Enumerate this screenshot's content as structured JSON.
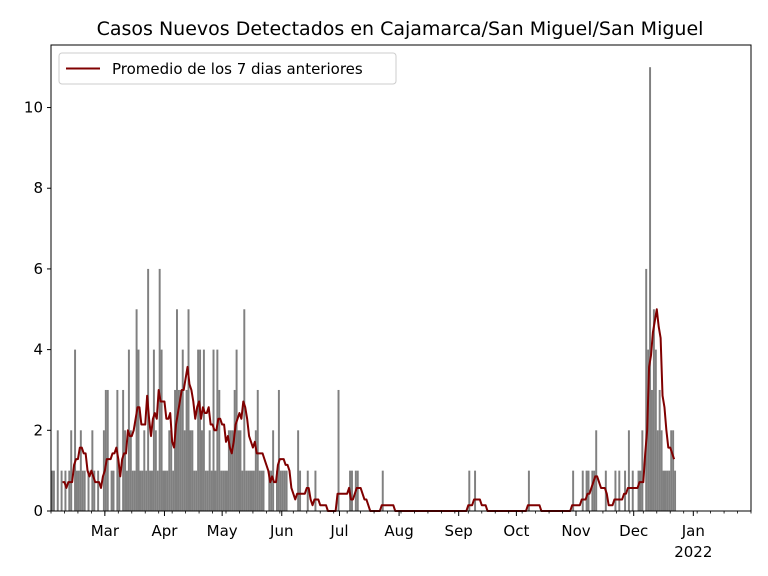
{
  "chart_data": {
    "type": "bar",
    "title": "Casos Nuevos Detectados en Cajamarca/San Miguel/San Miguel",
    "xlabel": "",
    "ylabel": "",
    "x_range": [
      "2021-02-01",
      "2022-01-31"
    ],
    "ylim": [
      0,
      11.55
    ],
    "yticks": [
      0,
      2,
      4,
      6,
      8,
      10
    ],
    "x_tick_labels": [
      {
        "date": "2021-03-01",
        "label": "Mar"
      },
      {
        "date": "2021-04-01",
        "label": "Apr"
      },
      {
        "date": "2021-05-01",
        "label": "May"
      },
      {
        "date": "2021-06-01",
        "label": "Jun"
      },
      {
        "date": "2021-07-01",
        "label": "Jul"
      },
      {
        "date": "2021-08-01",
        "label": "Aug"
      },
      {
        "date": "2021-09-01",
        "label": "Sep"
      },
      {
        "date": "2021-10-01",
        "label": "Oct"
      },
      {
        "date": "2021-11-01",
        "label": "Nov"
      },
      {
        "date": "2021-12-01",
        "label": "Dec"
      },
      {
        "date": "2022-01-01",
        "label": "Jan",
        "sublabel": "2022"
      }
    ],
    "grid": false,
    "legend": {
      "placement": "top-left",
      "entries": [
        "Promedio de los 7 dias anteriores"
      ]
    },
    "colors": {
      "bars": "#808080",
      "line": "#800000"
    },
    "start_date": "2021-02-01",
    "daily_cases": [
      1,
      1,
      0,
      2,
      0,
      1,
      0,
      1,
      0,
      1,
      2,
      0,
      4,
      1,
      1,
      2,
      1,
      1,
      0,
      1,
      0,
      2,
      1,
      0,
      1,
      0,
      0,
      2,
      3,
      3,
      0,
      1,
      1,
      0,
      3,
      1,
      0,
      3,
      2,
      1,
      4,
      2,
      1,
      1,
      5,
      4,
      1,
      1,
      2,
      1,
      6,
      1,
      1,
      4,
      2,
      1,
      6,
      4,
      1,
      1,
      1,
      2,
      2,
      1,
      3,
      5,
      3,
      3,
      4,
      2,
      3,
      5,
      2,
      2,
      1,
      1,
      4,
      4,
      2,
      4,
      1,
      1,
      2,
      1,
      4,
      1,
      4,
      3,
      1,
      1,
      1,
      1,
      2,
      2,
      2,
      3,
      4,
      2,
      2,
      1,
      5,
      1,
      1,
      1,
      1,
      1,
      2,
      3,
      1,
      1,
      1,
      0,
      0,
      1,
      1,
      2,
      0,
      1,
      3,
      1,
      1,
      1,
      1,
      0,
      0,
      0,
      0,
      0,
      2,
      1,
      0,
      0,
      0,
      1,
      0,
      0,
      0,
      1,
      0,
      0,
      0,
      0,
      0,
      0,
      0,
      0,
      0,
      0,
      0,
      3,
      0,
      0,
      0,
      0,
      0,
      1,
      1,
      0,
      1,
      1,
      0,
      0,
      0,
      0,
      0,
      0,
      0,
      0,
      0,
      0,
      0,
      0,
      1,
      0,
      0,
      0,
      0,
      0,
      0,
      0,
      0,
      0,
      0,
      0,
      0,
      0,
      0,
      0,
      0,
      0,
      0,
      0,
      0,
      0,
      0,
      0,
      0,
      0,
      0,
      0,
      0,
      0,
      0,
      0,
      0,
      0,
      0,
      0,
      0,
      0,
      0,
      0,
      0,
      0,
      0,
      0,
      0,
      1,
      0,
      0,
      1,
      0,
      0,
      0,
      0,
      0,
      0,
      0,
      0,
      0,
      0,
      0,
      0,
      0,
      0,
      0,
      0,
      0,
      0,
      0,
      0,
      0,
      0,
      0,
      0,
      0,
      0,
      0,
      1,
      0,
      0,
      0,
      0,
      0,
      0,
      0,
      0,
      0,
      0,
      0,
      0,
      0,
      0,
      0,
      0,
      0,
      0,
      0,
      0,
      0,
      0,
      1,
      0,
      0,
      0,
      0,
      1,
      0,
      1,
      1,
      0,
      1,
      1,
      2,
      0,
      0,
      0,
      0,
      1,
      0,
      0,
      0,
      0,
      1,
      0,
      1,
      0,
      0,
      1,
      0,
      2,
      0,
      1,
      0,
      0,
      1,
      1,
      2,
      0,
      6,
      4,
      11,
      3,
      5,
      4,
      2,
      3,
      2,
      1,
      1,
      1,
      1,
      2,
      2,
      1
    ]
  }
}
